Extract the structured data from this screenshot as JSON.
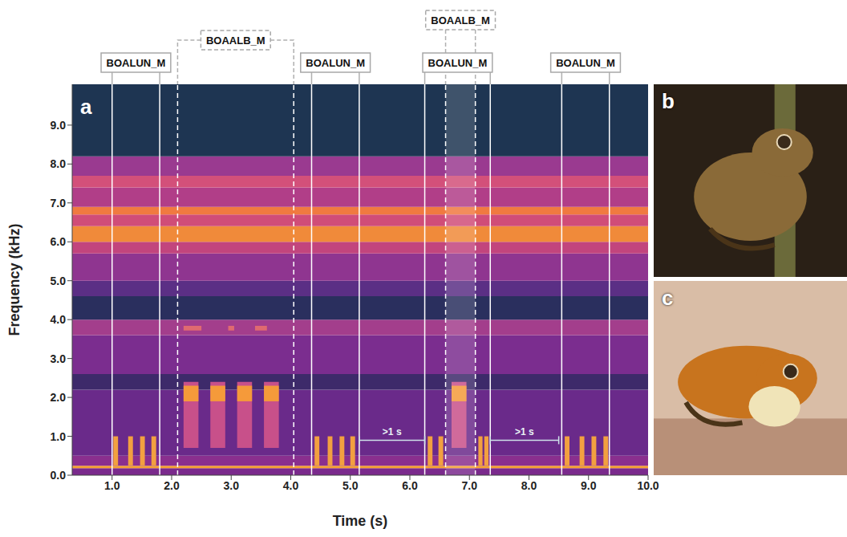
{
  "chart_data": {
    "type": "spectrogram",
    "panel_label": "a",
    "x_label": "Time (s)",
    "y_label": "Frequency (kHz)",
    "xlim": [
      0.33,
      10.0
    ],
    "xticks": [
      {
        "value": 1,
        "label": "1.0"
      },
      {
        "value": 2,
        "label": "2.0"
      },
      {
        "value": 3,
        "label": "3.0"
      },
      {
        "value": 4,
        "label": "4.0"
      },
      {
        "value": 5,
        "label": "5.0"
      },
      {
        "value": 6,
        "label": "6.0"
      },
      {
        "value": 7,
        "label": "7.0"
      },
      {
        "value": 8,
        "label": "8.0"
      },
      {
        "value": 9,
        "label": "9.0"
      },
      {
        "value": 10,
        "label": "10.0"
      }
    ],
    "ylim": [
      0,
      10.05
    ],
    "yticks": [
      {
        "value": 0,
        "label": "0.0"
      },
      {
        "value": 1,
        "label": "1.0"
      },
      {
        "value": 2,
        "label": "2.0"
      },
      {
        "value": 3,
        "label": "3.0"
      },
      {
        "value": 4,
        "label": "4.0"
      },
      {
        "value": 5,
        "label": "5.0"
      },
      {
        "value": 6,
        "label": "6.0"
      },
      {
        "value": 7,
        "label": "7.0"
      },
      {
        "value": 8,
        "label": "8.0"
      },
      {
        "value": 9,
        "label": "9.0"
      }
    ],
    "grid": false,
    "bands": [
      {
        "low": 0,
        "high": 0.18,
        "color": "#7a2a8c"
      },
      {
        "low": 0.18,
        "high": 0.24,
        "color": "#f5a030"
      },
      {
        "low": 0.24,
        "high": 0.5,
        "color": "#8a2f8e"
      },
      {
        "low": 0.5,
        "high": 2.2,
        "color": "#6a2a8a"
      },
      {
        "low": 2.2,
        "high": 2.6,
        "color": "#3d2a6a"
      },
      {
        "low": 2.6,
        "high": 3.6,
        "color": "#7b2d8f"
      },
      {
        "low": 3.6,
        "high": 4.0,
        "color": "#a33e8c"
      },
      {
        "low": 4.0,
        "high": 4.6,
        "color": "#2a2f5e"
      },
      {
        "low": 4.6,
        "high": 5.0,
        "color": "#5b2f85"
      },
      {
        "low": 5.0,
        "high": 5.7,
        "color": "#8f3590"
      },
      {
        "low": 5.7,
        "high": 6.0,
        "color": "#c2457d"
      },
      {
        "low": 6.0,
        "high": 6.4,
        "color": "#f08a3a"
      },
      {
        "low": 6.4,
        "high": 6.7,
        "color": "#d04d78"
      },
      {
        "low": 6.7,
        "high": 6.9,
        "color": "#f07a40"
      },
      {
        "low": 6.9,
        "high": 7.4,
        "color": "#b13e88"
      },
      {
        "low": 7.4,
        "high": 7.7,
        "color": "#d3507a"
      },
      {
        "low": 7.7,
        "high": 8.2,
        "color": "#9a3a90"
      },
      {
        "low": 8.2,
        "high": 10.05,
        "color": "#1e3552"
      }
    ],
    "calls": [
      {
        "start": 1.02,
        "end": 1.1,
        "low": 0.25,
        "high": 1.0,
        "color": "#f2a040"
      },
      {
        "start": 1.27,
        "end": 1.35,
        "low": 0.25,
        "high": 1.0,
        "color": "#f2a040"
      },
      {
        "start": 1.47,
        "end": 1.55,
        "low": 0.25,
        "high": 1.0,
        "color": "#f2a040"
      },
      {
        "start": 1.66,
        "end": 1.74,
        "low": 0.25,
        "high": 1.0,
        "color": "#f2a040"
      },
      {
        "start": 4.4,
        "end": 4.48,
        "low": 0.25,
        "high": 1.0,
        "color": "#f2a040"
      },
      {
        "start": 4.62,
        "end": 4.7,
        "low": 0.25,
        "high": 1.0,
        "color": "#f2a040"
      },
      {
        "start": 4.82,
        "end": 4.9,
        "low": 0.25,
        "high": 1.0,
        "color": "#f2a040"
      },
      {
        "start": 5.0,
        "end": 5.08,
        "low": 0.25,
        "high": 1.0,
        "color": "#f2a040"
      },
      {
        "start": 6.3,
        "end": 6.38,
        "low": 0.25,
        "high": 1.0,
        "color": "#f2a040"
      },
      {
        "start": 6.48,
        "end": 6.56,
        "low": 0.25,
        "high": 1.0,
        "color": "#f2a040"
      },
      {
        "start": 7.15,
        "end": 7.22,
        "low": 0.25,
        "high": 1.0,
        "color": "#f2a040"
      },
      {
        "start": 7.25,
        "end": 7.32,
        "low": 0.25,
        "high": 1.0,
        "color": "#f2a040"
      },
      {
        "start": 8.6,
        "end": 8.68,
        "low": 0.25,
        "high": 1.0,
        "color": "#f2a040"
      },
      {
        "start": 8.85,
        "end": 8.93,
        "low": 0.25,
        "high": 1.0,
        "color": "#f2a040"
      },
      {
        "start": 9.05,
        "end": 9.13,
        "low": 0.25,
        "high": 1.0,
        "color": "#f2a040"
      },
      {
        "start": 9.25,
        "end": 9.33,
        "low": 0.25,
        "high": 1.0,
        "color": "#f2a040"
      },
      {
        "start": 2.2,
        "end": 2.45,
        "low": 0.7,
        "high": 2.4,
        "color": "#c8508a"
      },
      {
        "start": 2.65,
        "end": 2.9,
        "low": 0.7,
        "high": 2.4,
        "color": "#c8508a"
      },
      {
        "start": 3.1,
        "end": 3.35,
        "low": 0.7,
        "high": 2.4,
        "color": "#c8508a"
      },
      {
        "start": 3.55,
        "end": 3.8,
        "low": 0.7,
        "high": 2.4,
        "color": "#c8508a"
      },
      {
        "start": 6.7,
        "end": 6.95,
        "low": 0.7,
        "high": 2.4,
        "color": "#c8508a"
      },
      {
        "start": 2.2,
        "end": 2.45,
        "low": 1.9,
        "high": 2.3,
        "color": "#f59a3a"
      },
      {
        "start": 2.65,
        "end": 2.9,
        "low": 1.9,
        "high": 2.3,
        "color": "#f59a3a"
      },
      {
        "start": 3.1,
        "end": 3.35,
        "low": 1.9,
        "high": 2.3,
        "color": "#f59a3a"
      },
      {
        "start": 3.55,
        "end": 3.8,
        "low": 1.9,
        "high": 2.3,
        "color": "#f59a3a"
      },
      {
        "start": 6.7,
        "end": 6.95,
        "low": 1.9,
        "high": 2.3,
        "color": "#f59a3a"
      },
      {
        "start": 2.2,
        "end": 2.5,
        "low": 3.72,
        "high": 3.84,
        "color": "#e06a70"
      },
      {
        "start": 2.95,
        "end": 3.05,
        "low": 3.72,
        "high": 3.84,
        "color": "#e06a70"
      },
      {
        "start": 3.4,
        "end": 3.6,
        "low": 3.72,
        "high": 3.84,
        "color": "#e06a70"
      }
    ],
    "annotations": [
      {
        "label": "BOAALB_M",
        "start": 2.1,
        "end": 4.05,
        "line_style": "dashed"
      },
      {
        "label": "BOAALB_M",
        "start": 6.6,
        "end": 7.1,
        "line_style": "dashed"
      },
      {
        "label": "BOALUN_M",
        "start": 1.0,
        "end": 1.8,
        "line_style": "solid"
      },
      {
        "label": "BOALUN_M",
        "start": 4.35,
        "end": 5.15,
        "line_style": "solid"
      },
      {
        "label": "BOALUN_M",
        "start": 6.25,
        "end": 7.35,
        "line_style": "solid"
      },
      {
        "label": "BOALUN_M",
        "start": 8.55,
        "end": 9.35,
        "line_style": "solid"
      }
    ],
    "brackets": [
      {
        "start": 5.15,
        "end": 6.25,
        "y": 0.9,
        "text": ">1 s"
      },
      {
        "start": 7.35,
        "end": 8.5,
        "y": 0.9,
        "text": ">1 s"
      }
    ]
  },
  "photos": [
    {
      "label": "b",
      "color": "#8a6a38"
    },
    {
      "label": "c",
      "color": "#c8741e"
    }
  ]
}
